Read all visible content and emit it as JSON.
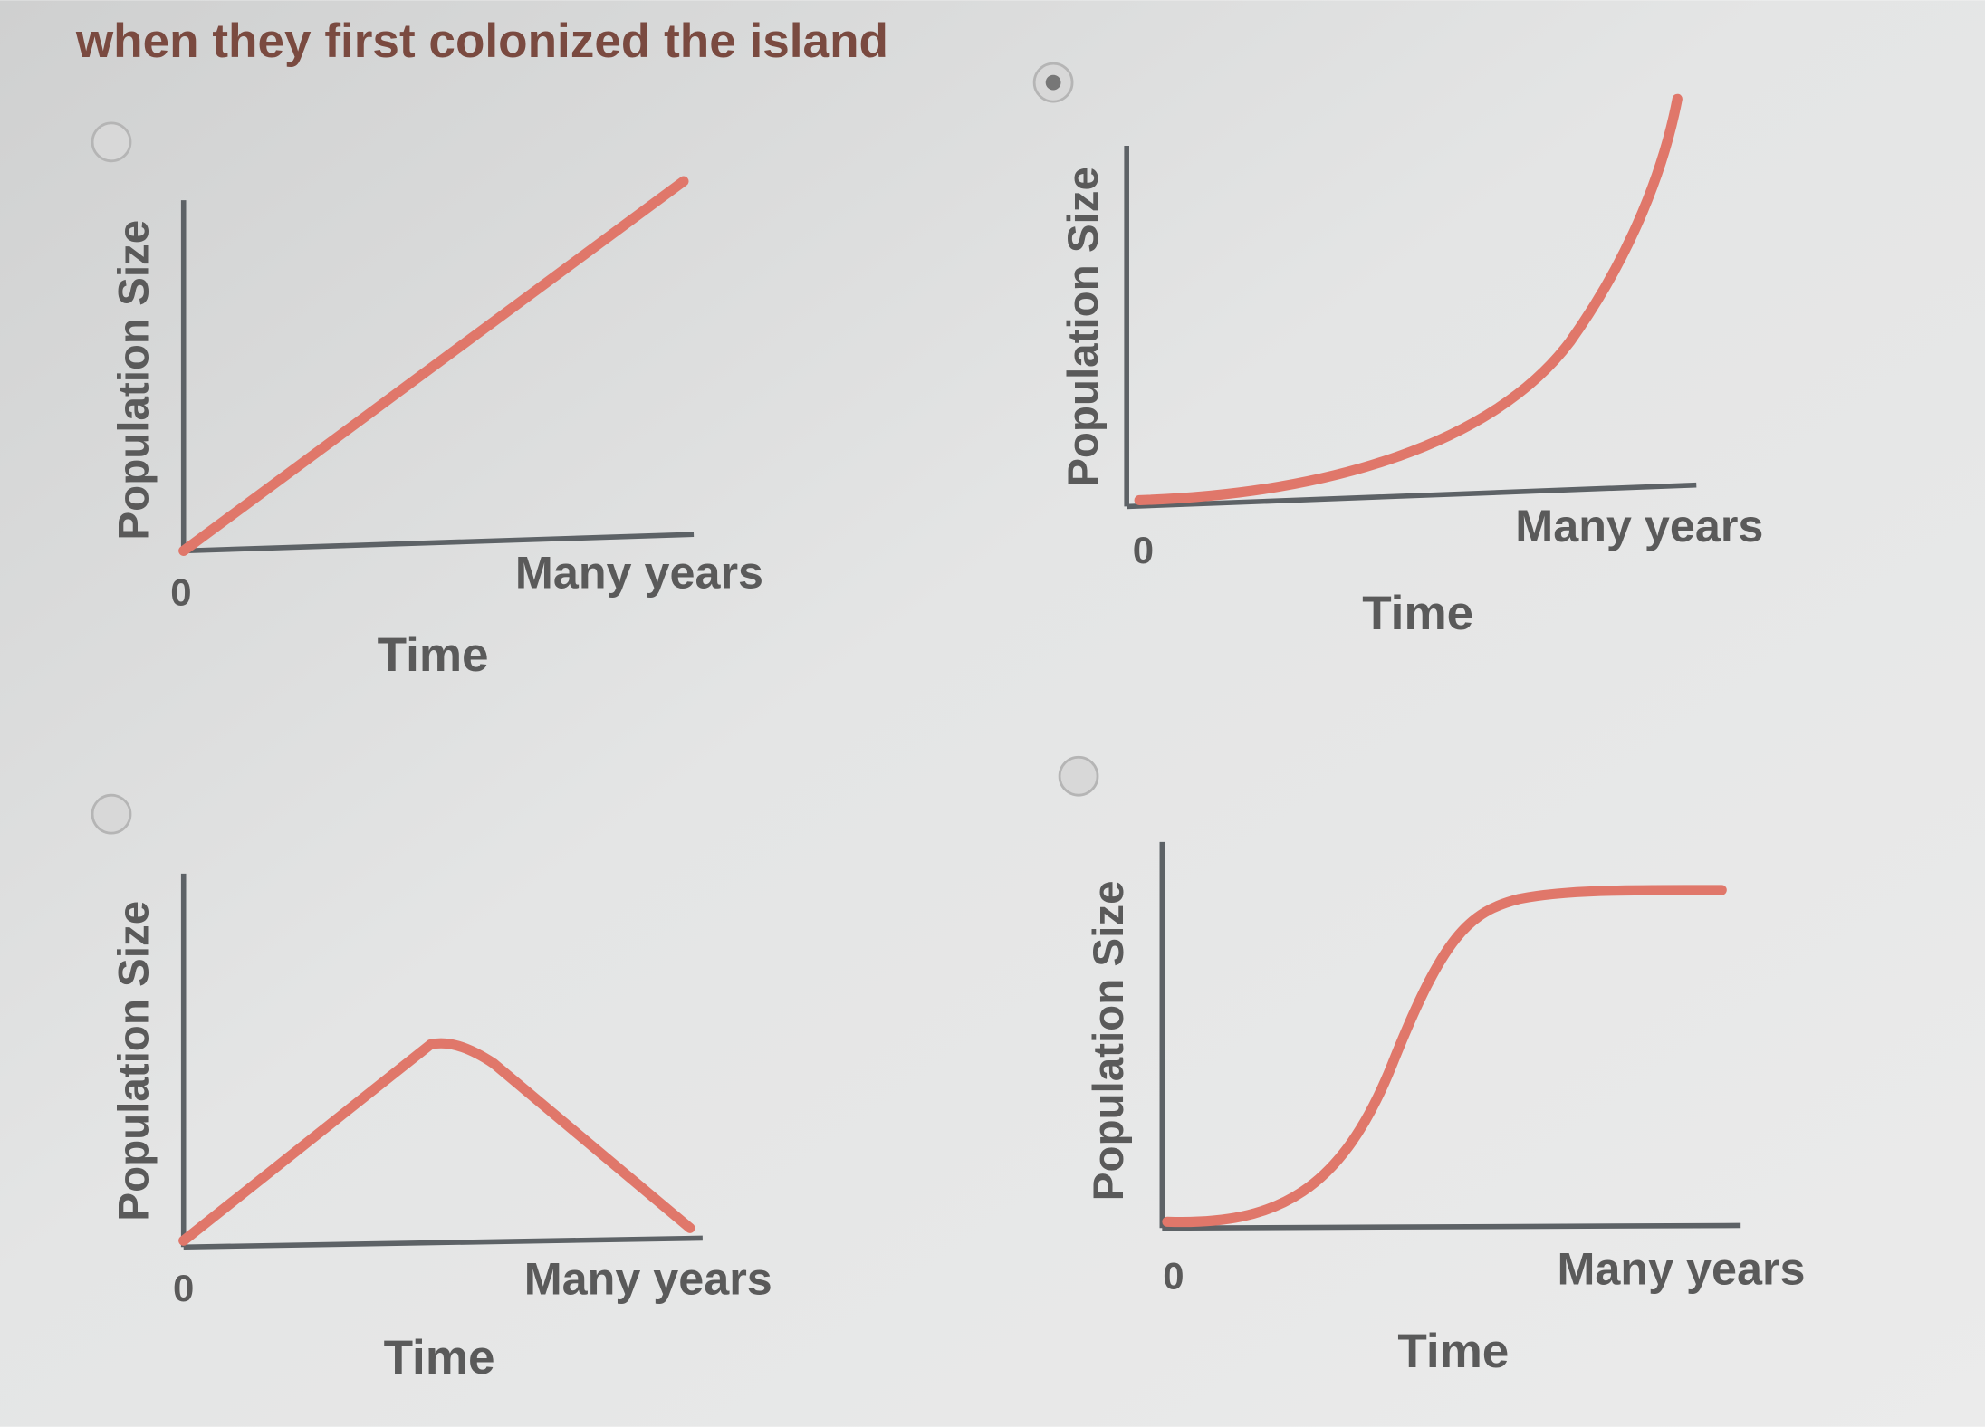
{
  "question": "when they first colonized the island",
  "options": [
    {
      "y_label": "Population Size",
      "origin": "0",
      "x_end": "Many years",
      "x_label": "Time",
      "selected": false
    },
    {
      "y_label": "Population Size",
      "origin": "0",
      "x_end": "Many years",
      "x_label": "Time",
      "selected": true
    },
    {
      "y_label": "Population Size",
      "origin": "0",
      "x_end": "Many years",
      "x_label": "Time",
      "selected": false
    },
    {
      "y_label": "Population Size",
      "origin": "0",
      "x_end": "Many years",
      "x_label": "Time",
      "selected": false
    }
  ]
}
